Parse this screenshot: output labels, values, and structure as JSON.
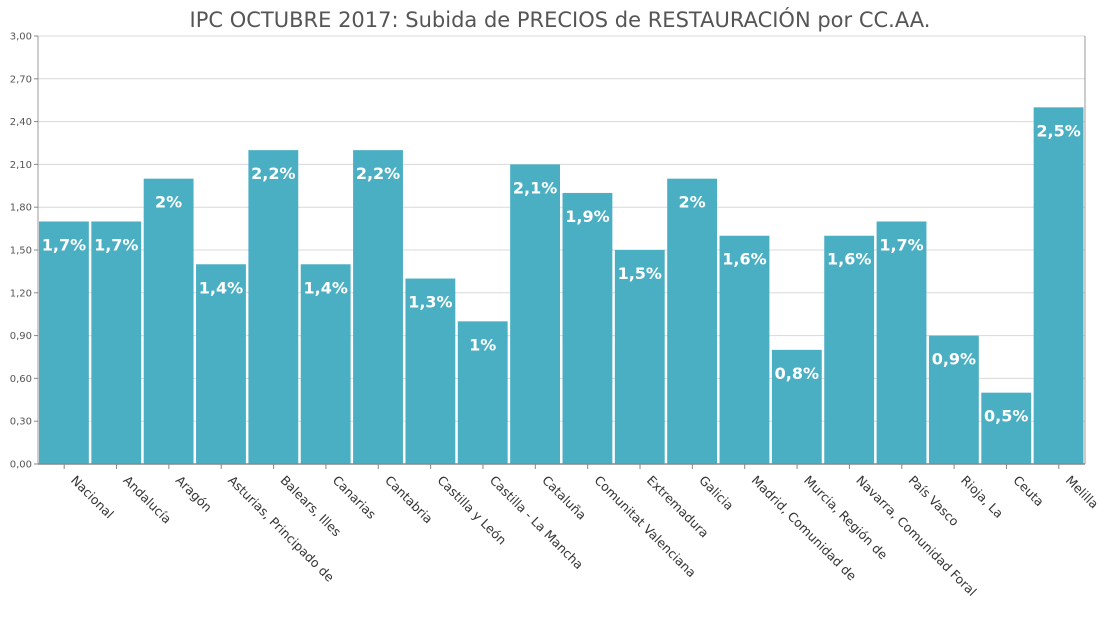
{
  "chart_data": {
    "type": "bar",
    "title": "IPC OCTUBRE 2017: Subida de PRECIOS de RESTAURACIÓN por CC.AA.",
    "xlabel": "",
    "ylabel": "",
    "ylim": [
      0,
      3
    ],
    "yticks": [
      0,
      0.3,
      0.6,
      0.9,
      1.2,
      1.5,
      1.8,
      2.1,
      2.4,
      2.7,
      3.0
    ],
    "ytick_labels": [
      "0,00",
      "0,30",
      "0,60",
      "0,90",
      "1,20",
      "1,50",
      "1,80",
      "2,10",
      "2,40",
      "2,70",
      "3,00"
    ],
    "grid": true,
    "legend": "none",
    "bar_color": "#4bafc4",
    "categories": [
      "Nacional",
      "Andalucía",
      "Aragón",
      "Asturias, Principado de",
      "Balears, Illes",
      "Canarias",
      "Cantabria",
      "Castilla y León",
      "Castilla - La Mancha",
      "Cataluña",
      "Comunitat Valenciana",
      "Extremadura",
      "Galicia",
      "Madrid, Comunidad de",
      "Murcia, Región de",
      "Navarra, Comunidad Foral",
      "País Vasco",
      "Rioja, La",
      "Ceuta",
      "Melilla"
    ],
    "values": [
      1.7,
      1.7,
      2.0,
      1.4,
      2.2,
      1.4,
      2.2,
      1.3,
      1.0,
      2.1,
      1.9,
      1.5,
      2.0,
      1.6,
      0.8,
      1.6,
      1.7,
      0.9,
      0.5,
      2.5
    ],
    "data_labels": [
      "1,7%",
      "1,7%",
      "2%",
      "1,4%",
      "2,2%",
      "1,4%",
      "2,2%",
      "1,3%",
      "1%",
      "2,1%",
      "1,9%",
      "1,5%",
      "2%",
      "1,6%",
      "0,8%",
      "1,6%",
      "1,7%",
      "0,9%",
      "0,5%",
      "2,5%"
    ]
  }
}
